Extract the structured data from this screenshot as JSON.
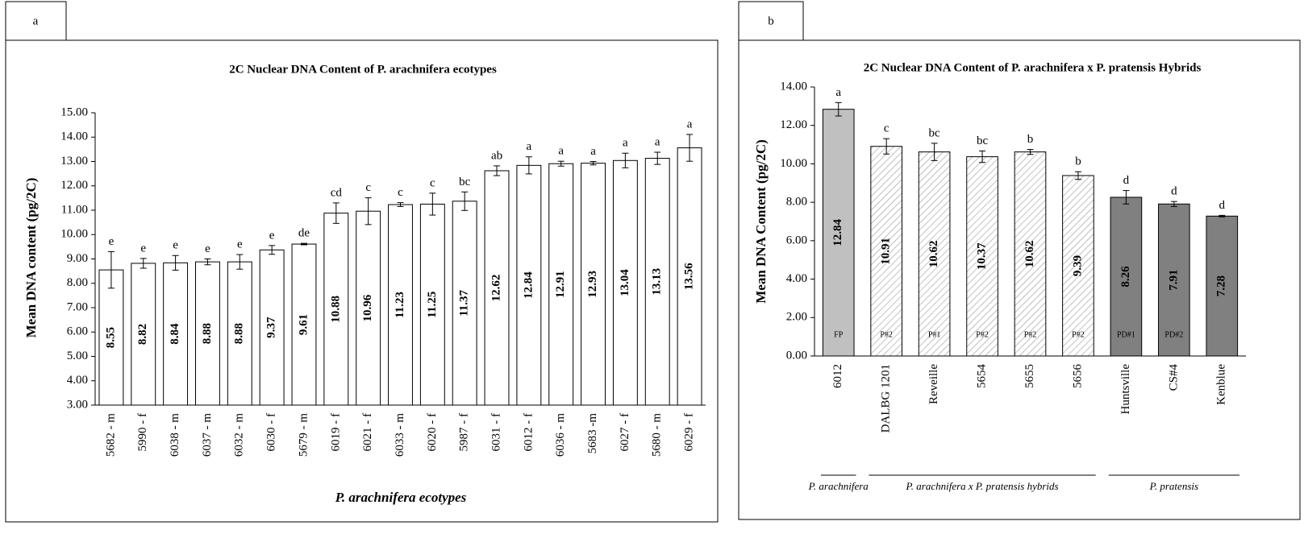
{
  "chart_data": [
    {
      "type": "bar",
      "panel": "a",
      "title": "2C Nuclear DNA Content of P. arachnifera ecotypes",
      "xlabel": "P. arachnifera ecotypes",
      "ylabel": "Mean DNA content (pg/2C)",
      "categories": [
        "5682 - m",
        "5990 - f",
        "6038 - m",
        "6037 - m",
        "6032 - m",
        "6030 - f",
        "5679 - m",
        "6019 - f",
        "6021 - f",
        "6033 - m",
        "6020 - f",
        "5987 - f",
        "6031 - f",
        "6012 - f",
        "6036 - m",
        "5683 -m",
        "6027 - f",
        "5680 - m",
        "6029 - f"
      ],
      "values": [
        8.55,
        8.82,
        8.84,
        8.88,
        8.88,
        9.37,
        9.61,
        10.88,
        10.96,
        11.23,
        11.25,
        11.37,
        12.62,
        12.84,
        12.91,
        12.93,
        13.04,
        13.13,
        13.56
      ],
      "errors": [
        0.75,
        0.2,
        0.3,
        0.12,
        0.3,
        0.18,
        0.03,
        0.42,
        0.55,
        0.08,
        0.45,
        0.38,
        0.2,
        0.35,
        0.1,
        0.07,
        0.3,
        0.25,
        0.55
      ],
      "letters": [
        "e",
        "e",
        "e",
        "e",
        "e",
        "e",
        "de",
        "cd",
        "c",
        "c",
        "c",
        "bc",
        "ab",
        "a",
        "a",
        "a",
        "a",
        "a",
        "a"
      ],
      "fills": [
        "#ffffff",
        "#ffffff",
        "#ffffff",
        "#ffffff",
        "#ffffff",
        "#ffffff",
        "#ffffff",
        "#ffffff",
        "#ffffff",
        "#ffffff",
        "#ffffff",
        "#ffffff",
        "#ffffff",
        "#ffffff",
        "#ffffff",
        "#ffffff",
        "#ffffff",
        "#ffffff",
        "#ffffff"
      ],
      "ylim": [
        3,
        15
      ],
      "yticks": [
        {
          "value": 3,
          "label": "3.00"
        },
        {
          "value": 4,
          "label": "4.00"
        },
        {
          "value": 5,
          "label": "5.00"
        },
        {
          "value": 6,
          "label": "6.00"
        },
        {
          "value": 7,
          "label": "7.00"
        },
        {
          "value": 8,
          "label": "8.00"
        },
        {
          "value": 9,
          "label": "9.00"
        },
        {
          "value": 10,
          "label": "10.00"
        },
        {
          "value": 11,
          "label": "11.00"
        },
        {
          "value": 12,
          "label": "12.00"
        },
        {
          "value": 13,
          "label": "13.00"
        },
        {
          "value": 14,
          "label": "14.00"
        },
        {
          "value": 15,
          "label": "15.00"
        }
      ],
      "grid": false
    },
    {
      "type": "bar",
      "panel": "b",
      "title": "2C Nuclear DNA Content of P. arachnifera x P. pratensis Hybrids",
      "ylabel": "Mean DNA Content (pg/2C)",
      "categories": [
        "6012",
        "DALBG 1201",
        "Reveille",
        "5654",
        "5655",
        "5656",
        "Huntsville",
        "CS#4",
        "Kenblue"
      ],
      "values": [
        12.84,
        10.91,
        10.62,
        10.37,
        10.62,
        9.39,
        8.26,
        7.91,
        7.28
      ],
      "errors": [
        0.35,
        0.4,
        0.45,
        0.3,
        0.13,
        0.2,
        0.35,
        0.13,
        0.04
      ],
      "letters": [
        "a",
        "c",
        "bc",
        "bc",
        "b",
        "b",
        "d",
        "d",
        "d"
      ],
      "inner_labels": [
        "FP",
        "P#2",
        "P#1",
        "P#2",
        "P#2",
        "P#2",
        "PD#1",
        "PD#2",
        null
      ],
      "fills": [
        "#c0c0c0",
        "hatch",
        "hatch",
        "hatch",
        "hatch",
        "hatch",
        "#808080",
        "#808080",
        "#808080"
      ],
      "groups": [
        {
          "label": "P. arachnifera",
          "start": 0,
          "end": 0
        },
        {
          "label": "P. arachnifera x P. pratensis hybrids",
          "start": 1,
          "end": 5
        },
        {
          "label": "P. pratensis",
          "start": 6,
          "end": 8
        }
      ],
      "ylim": [
        0,
        14
      ],
      "yticks": [
        {
          "value": 0,
          "label": "0.00"
        },
        {
          "value": 2,
          "label": "2.00"
        },
        {
          "value": 4,
          "label": "4.00"
        },
        {
          "value": 6,
          "label": "6.00"
        },
        {
          "value": 8,
          "label": "8.00"
        },
        {
          "value": 10,
          "label": "10.00"
        },
        {
          "value": 12,
          "label": "12.00"
        },
        {
          "value": 14,
          "label": "14.00"
        }
      ],
      "grid": false
    }
  ]
}
